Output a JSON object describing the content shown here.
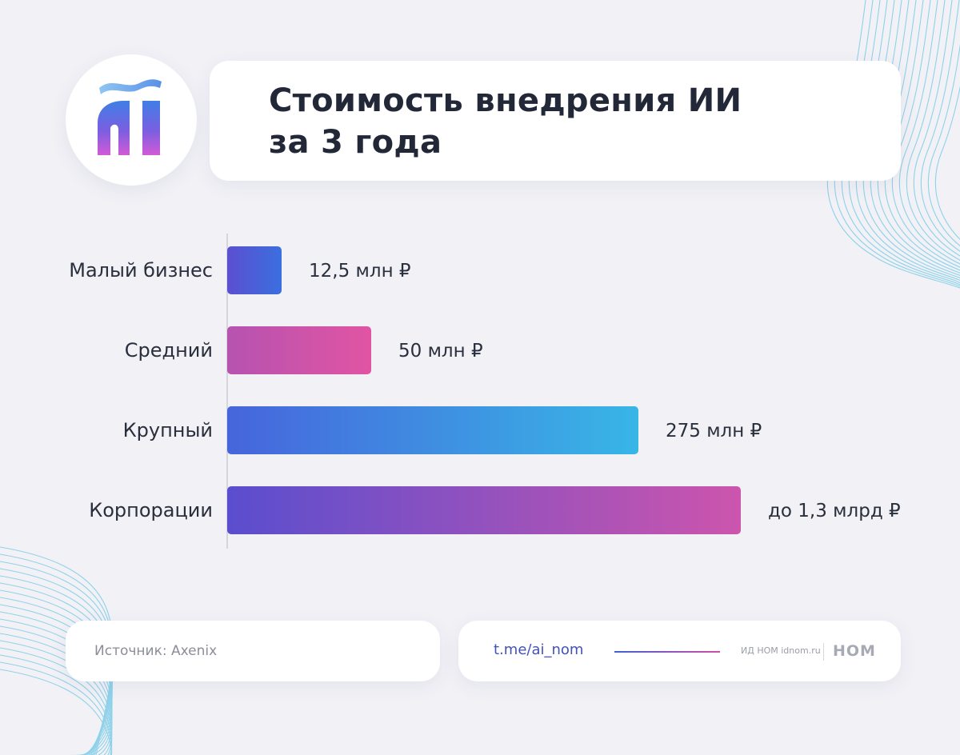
{
  "header": {
    "title_line1": "Стоимость внедрения ИИ",
    "title_line2": "за 3 года",
    "logo_icon": "ai-logo-icon"
  },
  "chart_data": {
    "type": "bar",
    "orientation": "horizontal",
    "unit": "млн ₽",
    "categories": [
      "Малый бизнес",
      "Средний",
      "Крупный",
      "Корпорации"
    ],
    "values": [
      12.5,
      50,
      275,
      1300
    ],
    "value_labels": [
      "12,5 млн ₽",
      "50 млн ₽",
      "275 млн ₽",
      "до 1,3 млрд ₽"
    ],
    "gradients": [
      [
        "#5b4fd0",
        "#3b6fdf"
      ],
      [
        "#b653b0",
        "#e154a3"
      ],
      [
        "#4665dc",
        "#38b6e6"
      ],
      [
        "#5a4ece",
        "#cc55ad"
      ]
    ],
    "grid": false,
    "legend": "none"
  },
  "footer": {
    "source": "Источник: Axenix",
    "link": "t.me/ai_nom",
    "publisher": "ИД НОМ idnom.ru",
    "brand": "НОМ"
  },
  "colors": {
    "background": "#f1f1f6",
    "title": "#232838",
    "accent_blue": "#3f5fd6",
    "accent_pink": "#d24ea6"
  }
}
